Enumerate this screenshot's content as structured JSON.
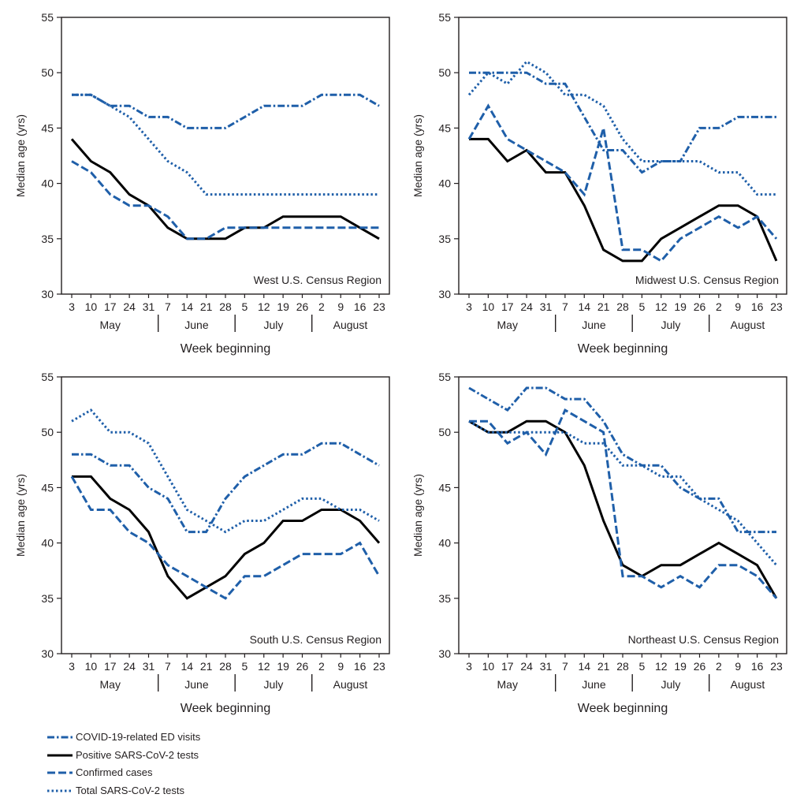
{
  "figure": {
    "y_tick_labels": [
      "30",
      "35",
      "40",
      "45",
      "50",
      "55"
    ],
    "x_tick_labels": [
      "3",
      "10",
      "17",
      "24",
      "31",
      "7",
      "14",
      "21",
      "28",
      "5",
      "12",
      "19",
      "26",
      "2",
      "9",
      "16",
      "23"
    ],
    "month_labels": [
      "May",
      "June",
      "July",
      "August"
    ],
    "xlabel": "Week beginning",
    "ylabel": "Median age (yrs)"
  },
  "legend": [
    {
      "label": "COVID-19-related ED visits",
      "style": "dash-dot",
      "color": "#1f5fa9"
    },
    {
      "label": "Positive SARS-CoV-2 tests",
      "style": "solid",
      "color": "#000000"
    },
    {
      "label": "Confirmed cases",
      "style": "dashed",
      "color": "#1f5fa9"
    },
    {
      "label": "Total SARS-CoV-2 tests",
      "style": "dotted",
      "color": "#1f5fa9"
    }
  ],
  "chart_data": [
    {
      "type": "line",
      "title": "West U.S. Census Region",
      "xlabel": "Week beginning",
      "ylabel": "Median age (yrs)",
      "ylim": [
        30,
        55
      ],
      "x": [
        "May 3",
        "May 10",
        "May 17",
        "May 24",
        "May 31",
        "Jun 7",
        "Jun 14",
        "Jun 21",
        "Jun 28",
        "Jul 5",
        "Jul 12",
        "Jul 19",
        "Jul 26",
        "Aug 2",
        "Aug 9",
        "Aug 16",
        "Aug 23"
      ],
      "series": [
        {
          "name": "COVID-19-related ED visits",
          "values": [
            48,
            48,
            47,
            47,
            46,
            46,
            45,
            45,
            45,
            46,
            47,
            47,
            47,
            48,
            48,
            48,
            47
          ]
        },
        {
          "name": "Positive SARS-CoV-2 tests",
          "values": [
            44,
            42,
            41,
            39,
            38,
            36,
            35,
            35,
            35,
            36,
            36,
            37,
            37,
            37,
            37,
            36,
            35
          ]
        },
        {
          "name": "Confirmed cases",
          "values": [
            42,
            41,
            39,
            38,
            38,
            37,
            35,
            35,
            36,
            36,
            36,
            36,
            36,
            36,
            36,
            36,
            36
          ]
        },
        {
          "name": "Total SARS-CoV-2 tests",
          "values": [
            48,
            48,
            47,
            46,
            44,
            42,
            41,
            39,
            39,
            39,
            39,
            39,
            39,
            39,
            39,
            39,
            39
          ]
        }
      ]
    },
    {
      "type": "line",
      "title": "Midwest U.S. Census Region",
      "xlabel": "Week beginning",
      "ylabel": "Median age (yrs)",
      "ylim": [
        30,
        55
      ],
      "x": [
        "May 3",
        "May 10",
        "May 17",
        "May 24",
        "May 31",
        "Jun 7",
        "Jun 14",
        "Jun 21",
        "Jun 28",
        "Jul 5",
        "Jul 12",
        "Jul 19",
        "Jul 26",
        "Aug 2",
        "Aug 9",
        "Aug 16",
        "Aug 23"
      ],
      "series": [
        {
          "name": "COVID-19-related ED visits",
          "values": [
            50,
            50,
            50,
            50,
            49,
            49,
            46,
            43,
            43,
            41,
            42,
            42,
            45,
            45,
            46,
            46,
            46
          ]
        },
        {
          "name": "Positive SARS-CoV-2 tests",
          "values": [
            44,
            44,
            42,
            43,
            41,
            41,
            38,
            34,
            33,
            33,
            35,
            36,
            37,
            38,
            38,
            37,
            33
          ]
        },
        {
          "name": "Confirmed cases",
          "values": [
            44,
            47,
            44,
            43,
            42,
            41,
            39,
            45,
            34,
            34,
            33,
            35,
            36,
            37,
            36,
            37,
            35
          ]
        },
        {
          "name": "Total SARS-CoV-2 tests",
          "values": [
            48,
            50,
            49,
            51,
            50,
            48,
            48,
            47,
            44,
            42,
            42,
            42,
            42,
            41,
            41,
            39,
            39
          ]
        }
      ]
    },
    {
      "type": "line",
      "title": "South U.S. Census Region",
      "xlabel": "Week beginning",
      "ylabel": "Median age (yrs)",
      "ylim": [
        30,
        55
      ],
      "x": [
        "May 3",
        "May 10",
        "May 17",
        "May 24",
        "May 31",
        "Jun 7",
        "Jun 14",
        "Jun 21",
        "Jun 28",
        "Jul 5",
        "Jul 12",
        "Jul 19",
        "Jul 26",
        "Aug 2",
        "Aug 9",
        "Aug 16",
        "Aug 23"
      ],
      "series": [
        {
          "name": "COVID-19-related ED visits",
          "values": [
            48,
            48,
            47,
            47,
            45,
            44,
            41,
            41,
            44,
            46,
            47,
            48,
            48,
            49,
            49,
            48,
            47
          ]
        },
        {
          "name": "Positive SARS-CoV-2 tests",
          "values": [
            46,
            46,
            44,
            43,
            41,
            37,
            35,
            36,
            37,
            39,
            40,
            42,
            42,
            43,
            43,
            42,
            40
          ]
        },
        {
          "name": "Confirmed cases",
          "values": [
            46,
            43,
            43,
            41,
            40,
            38,
            37,
            36,
            35,
            37,
            37,
            38,
            39,
            39,
            39,
            40,
            37
          ]
        },
        {
          "name": "Total SARS-CoV-2 tests",
          "values": [
            51,
            52,
            50,
            50,
            49,
            46,
            43,
            42,
            41,
            42,
            42,
            43,
            44,
            44,
            43,
            43,
            42
          ]
        }
      ]
    },
    {
      "type": "line",
      "title": "Northeast U.S. Census Region",
      "xlabel": "Week beginning",
      "ylabel": "Median age (yrs)",
      "ylim": [
        30,
        55
      ],
      "x": [
        "May 3",
        "May 10",
        "May 17",
        "May 24",
        "May 31",
        "Jun 7",
        "Jun 14",
        "Jun 21",
        "Jun 28",
        "Jul 5",
        "Jul 12",
        "Jul 19",
        "Jul 26",
        "Aug 2",
        "Aug 9",
        "Aug 16",
        "Aug 23"
      ],
      "series": [
        {
          "name": "COVID-19-related ED visits",
          "values": [
            54,
            53,
            52,
            54,
            54,
            53,
            53,
            51,
            48,
            47,
            47,
            45,
            44,
            44,
            41,
            41,
            41
          ]
        },
        {
          "name": "Positive SARS-CoV-2 tests",
          "values": [
            51,
            50,
            50,
            51,
            51,
            50,
            47,
            42,
            38,
            37,
            38,
            38,
            39,
            40,
            39,
            38,
            35
          ]
        },
        {
          "name": "Confirmed cases",
          "values": [
            51,
            51,
            49,
            50,
            48,
            52,
            51,
            50,
            37,
            37,
            36,
            37,
            36,
            38,
            38,
            37,
            35
          ]
        },
        {
          "name": "Total SARS-CoV-2 tests",
          "values": [
            51,
            50,
            50,
            50,
            50,
            50,
            49,
            49,
            47,
            47,
            46,
            46,
            44,
            43,
            42,
            40,
            38
          ]
        }
      ]
    }
  ]
}
